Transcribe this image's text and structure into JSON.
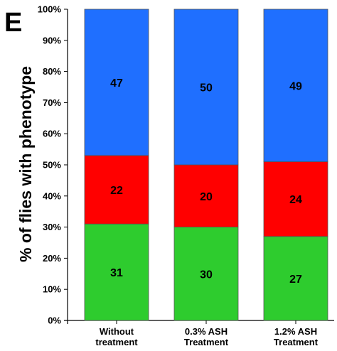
{
  "panel_label": "E",
  "chart_data": {
    "type": "bar",
    "stacked": true,
    "percent_stacked": true,
    "categories": [
      [
        "Without",
        "treatment"
      ],
      [
        "0.3% ASH",
        "Treatment"
      ],
      [
        "1.2% ASH",
        "Treatment"
      ]
    ],
    "series": [
      {
        "color": "#2ecc2e",
        "values": [
          31,
          30,
          27
        ]
      },
      {
        "color": "#ff0000",
        "values": [
          22,
          20,
          24
        ]
      },
      {
        "color": "#1f6fff",
        "values": [
          47,
          50,
          49
        ]
      }
    ],
    "ylabel": "% of flies with phenotype",
    "ylim": [
      0,
      100
    ],
    "yticks": [
      "0%",
      "10%",
      "20%",
      "30%",
      "40%",
      "50%",
      "60%",
      "70%",
      "80%",
      "90%",
      "100%"
    ],
    "grid": false,
    "legend": "none"
  }
}
